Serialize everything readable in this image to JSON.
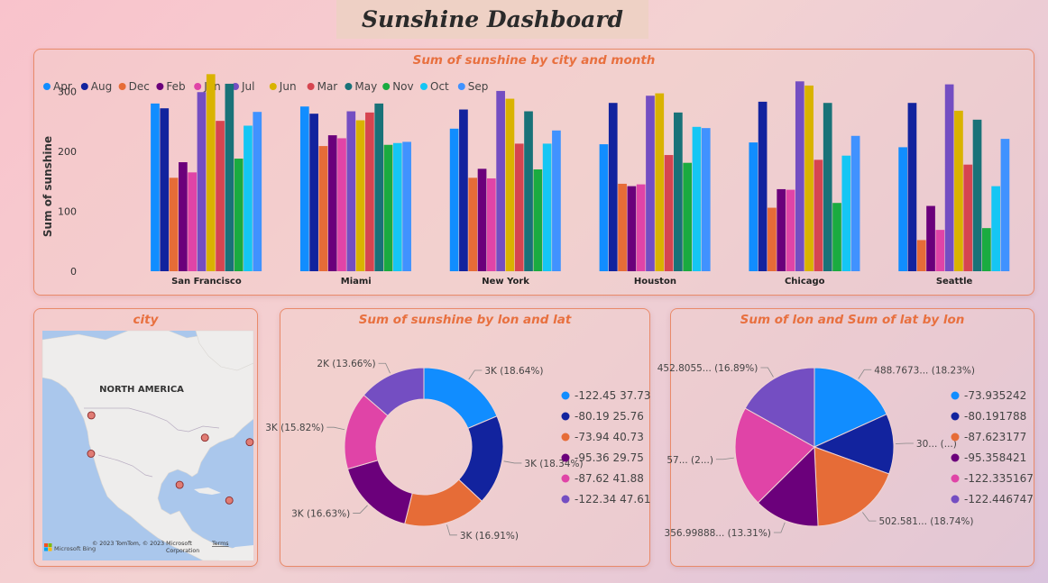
{
  "dashboard": {
    "title": "Sunshine Dashboard"
  },
  "colors": {
    "Apr": "#118dff",
    "Aug": "#12239e",
    "Dec": "#e66c37",
    "Feb": "#6b007b",
    "Jan": "#e044a7",
    "Jul": "#744ec2",
    "Jun": "#d9b300",
    "Mar": "#d64550",
    "May": "#197278",
    "Nov": "#1aab40",
    "Oct": "#15c6f4",
    "Sep": "#4092ff"
  },
  "chart_data": [
    {
      "type": "bar",
      "title": "Sum of sunshine by city and month",
      "ylabel": "Sum of sunshine",
      "xlabel": "",
      "ylim": [
        0,
        340
      ],
      "yticks": [
        "0",
        "100",
        "200",
        "300"
      ],
      "legend_placement": "top-left",
      "categories": [
        "San Francisco",
        "Miami",
        "New York",
        "Houston",
        "Chicago",
        "Seattle"
      ],
      "series": [
        {
          "name": "Apr",
          "values": [
            280,
            275,
            238,
            212,
            215,
            207
          ]
        },
        {
          "name": "Aug",
          "values": [
            272,
            263,
            270,
            281,
            283,
            281
          ]
        },
        {
          "name": "Dec",
          "values": [
            156,
            209,
            156,
            146,
            106,
            52
          ]
        },
        {
          "name": "Feb",
          "values": [
            182,
            227,
            171,
            142,
            137,
            109
          ]
        },
        {
          "name": "Jan",
          "values": [
            165,
            222,
            155,
            145,
            136,
            69
          ]
        },
        {
          "name": "Jul",
          "values": [
            299,
            267,
            301,
            293,
            317,
            312
          ]
        },
        {
          "name": "Jun",
          "values": [
            329,
            252,
            288,
            297,
            310,
            268
          ]
        },
        {
          "name": "Mar",
          "values": [
            251,
            265,
            213,
            194,
            186,
            178
          ]
        },
        {
          "name": "May",
          "values": [
            313,
            280,
            267,
            265,
            281,
            253
          ]
        },
        {
          "name": "Nov",
          "values": [
            188,
            211,
            170,
            181,
            114,
            72
          ]
        },
        {
          "name": "Oct",
          "values": [
            243,
            214,
            213,
            241,
            193,
            142
          ]
        },
        {
          "name": "Sep",
          "values": [
            266,
            216,
            235,
            239,
            226,
            221
          ]
        }
      ]
    },
    {
      "type": "pie",
      "variant": "donut",
      "title": "Sum of sunshine by lon and lat",
      "labels": [
        "-122.45 37.73",
        "-80.19 25.76",
        "-73.94 40.73",
        "-95.36 29.75",
        "-87.62 41.88",
        "-122.34 47.61"
      ],
      "values": [
        18.64,
        18.34,
        16.91,
        16.63,
        15.82,
        13.66
      ],
      "data_labels": [
        "3K (18.64%)",
        "3K (18.34%)",
        "3K (16.91%)",
        "3K (16.63%)",
        "3K (15.82%)",
        "2K (13.66%)"
      ],
      "colors": [
        "#118dff",
        "#12239e",
        "#e66c37",
        "#6b007b",
        "#e044a7",
        "#744ec2"
      ]
    },
    {
      "type": "pie",
      "title": "Sum of lon and Sum of lat by lon",
      "labels": [
        "-73.935242",
        "-80.191788",
        "-87.623177",
        "-95.358421",
        "-122.335167",
        "-122.446747"
      ],
      "values": [
        18.23,
        12.3,
        18.74,
        13.31,
        20.53,
        16.89
      ],
      "data_labels": [
        "488.7673... (18.23%)",
        "30... (...)",
        "502.581... (18.74%)",
        "356.99888... (13.31%)",
        "57... (2...)",
        "452.8055... (16.89%)"
      ],
      "colors": [
        "#118dff",
        "#12239e",
        "#e66c37",
        "#6b007b",
        "#e044a7",
        "#744ec2"
      ]
    }
  ],
  "map": {
    "title": "city",
    "region_label": "NORTH AMERICA",
    "attribution": "© 2023 TomTom, © 2023 Microsoft Corporation",
    "terms": "Terms",
    "logo": "Microsoft Bing",
    "markers": [
      {
        "lon": -122.42,
        "lat": 37.77
      },
      {
        "lon": -122.33,
        "lat": 47.61
      },
      {
        "lon": -87.63,
        "lat": 41.88
      },
      {
        "lon": -73.94,
        "lat": 40.73
      },
      {
        "lon": -95.36,
        "lat": 29.76
      },
      {
        "lon": -80.19,
        "lat": 25.76
      }
    ]
  }
}
